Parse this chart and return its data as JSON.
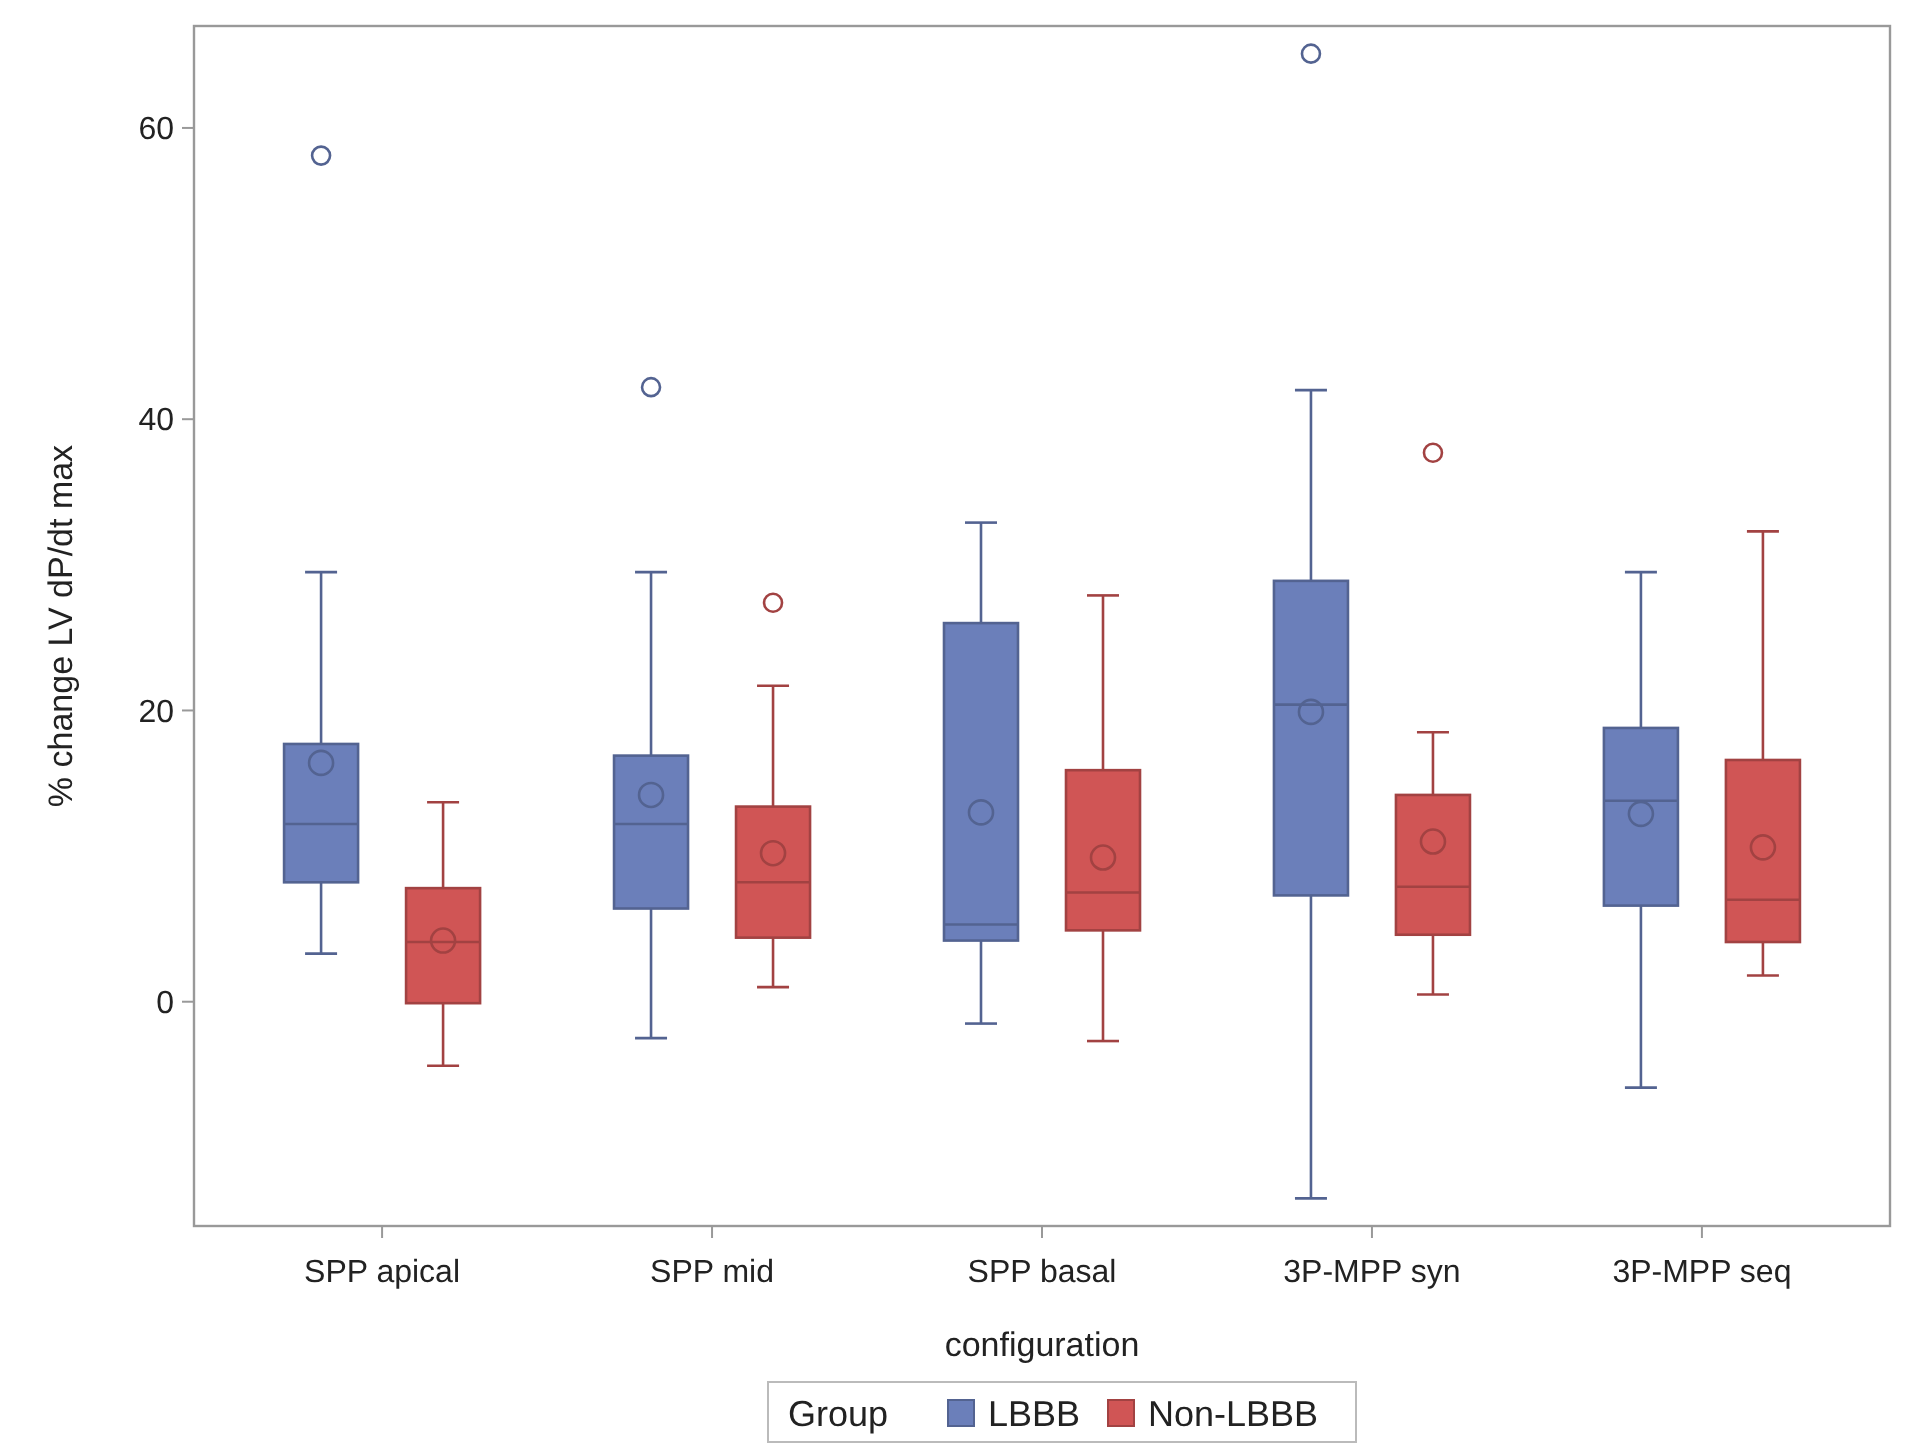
{
  "chart_data": {
    "type": "box",
    "xlabel": "configuration",
    "ylabel": "% change LV dP/dt max",
    "legend_title": "Group",
    "legend": "bottom",
    "grid": false,
    "categories": [
      "SPP apical",
      "SPP mid",
      "SPP basal",
      "3P-MPP syn",
      "3P-MPP seq"
    ],
    "ylim": [
      -15.4,
      67
    ],
    "yticks": [
      0,
      20,
      40,
      60
    ],
    "series": [
      {
        "name": "LBBB",
        "color": "#6b7fba",
        "boxes": [
          {
            "low": 3.3,
            "q1": 8.2,
            "median": 12.2,
            "q3": 17.7,
            "high": 29.5,
            "mean": 16.4,
            "outliers": [
              58.1
            ]
          },
          {
            "low": -2.5,
            "q1": 6.4,
            "median": 12.2,
            "q3": 16.9,
            "high": 29.5,
            "mean": 14.2,
            "outliers": [
              42.2
            ]
          },
          {
            "low": -1.5,
            "q1": 4.2,
            "median": 5.3,
            "q3": 26.0,
            "high": 32.9,
            "mean": 13.0
          },
          {
            "low": -13.5,
            "q1": 7.3,
            "median": 20.4,
            "q3": 28.9,
            "high": 42.0,
            "mean": 19.9,
            "outliers": [
              65.1
            ]
          },
          {
            "low": -5.9,
            "q1": 6.6,
            "median": 13.8,
            "q3": 18.8,
            "high": 29.5,
            "mean": 12.9
          }
        ]
      },
      {
        "name": "Non-LBBB",
        "color": "#d05555",
        "boxes": [
          {
            "low": -4.4,
            "q1": -0.1,
            "median": 4.1,
            "q3": 7.8,
            "high": 13.7,
            "mean": 4.2
          },
          {
            "low": 1.0,
            "q1": 4.4,
            "median": 8.2,
            "q3": 13.4,
            "high": 21.7,
            "mean": 10.2,
            "outliers": [
              27.4
            ]
          },
          {
            "low": -2.7,
            "q1": 4.9,
            "median": 7.5,
            "q3": 15.9,
            "high": 27.9,
            "mean": 9.9
          },
          {
            "low": 0.5,
            "q1": 4.6,
            "median": 7.9,
            "q3": 14.2,
            "high": 18.5,
            "mean": 11.0,
            "outliers": [
              37.7
            ]
          },
          {
            "low": 1.8,
            "q1": 4.1,
            "median": 7.0,
            "q3": 16.6,
            "high": 32.3,
            "mean": 10.6
          }
        ]
      }
    ]
  }
}
